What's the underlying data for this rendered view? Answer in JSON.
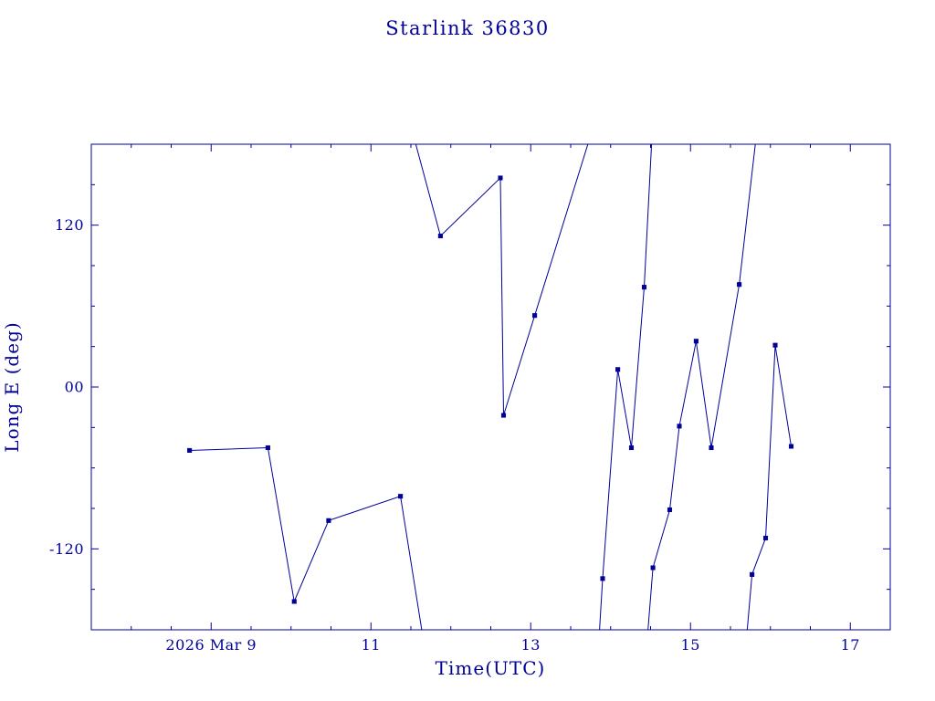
{
  "page": {
    "background": "#ffffff"
  },
  "colors": {
    "accent": "#000099",
    "background": "#ffffff"
  },
  "chart_data": {
    "type": "line",
    "title": "Starlink 36830",
    "xlabel": "Time(UTC)",
    "ylabel": "Long E (deg)",
    "xlim": [
      7.5,
      17.5
    ],
    "ylim": [
      -180,
      180
    ],
    "grid": false,
    "legend": "none",
    "line_color": "#000099",
    "marker": "filled-square",
    "x_major_ticks": [
      {
        "value": 9,
        "label": "2026 Mar 9"
      },
      {
        "value": 11,
        "label": "11"
      },
      {
        "value": 13,
        "label": "13"
      },
      {
        "value": 15,
        "label": "15"
      },
      {
        "value": 17,
        "label": "17"
      }
    ],
    "x_minor_step": 0.5,
    "y_major_ticks": [
      {
        "value": 120,
        "label": "120"
      },
      {
        "value": 0,
        "label": "00"
      },
      {
        "value": -120,
        "label": "-120"
      }
    ],
    "y_minor_step": 30,
    "series": [
      {
        "name": "segment-1",
        "points": [
          [
            8.73,
            -47
          ],
          [
            9.71,
            -45
          ],
          [
            10.04,
            -159
          ],
          [
            10.47,
            -99
          ],
          [
            11.37,
            -81
          ],
          [
            11.69,
            -200
          ]
        ]
      },
      {
        "name": "segment-2",
        "points": [
          [
            11.47,
            200
          ],
          [
            11.87,
            112
          ],
          [
            12.62,
            155
          ],
          [
            12.66,
            -21
          ],
          [
            13.05,
            53
          ],
          [
            13.82,
            200
          ]
        ]
      },
      {
        "name": "segment-3",
        "points": [
          [
            13.84,
            -200
          ],
          [
            13.9,
            -142
          ],
          [
            14.09,
            13
          ],
          [
            14.26,
            -45
          ],
          [
            14.42,
            74
          ],
          [
            14.53,
            200
          ]
        ]
      },
      {
        "name": "segment-4",
        "points": [
          [
            14.44,
            -200
          ],
          [
            14.53,
            -134
          ],
          [
            14.74,
            -91
          ],
          [
            14.86,
            -29
          ],
          [
            15.07,
            34
          ],
          [
            15.26,
            -45
          ],
          [
            15.61,
            76
          ],
          [
            15.85,
            200
          ]
        ]
      },
      {
        "name": "segment-5",
        "points": [
          [
            15.68,
            -200
          ],
          [
            15.77,
            -139
          ],
          [
            15.94,
            -112
          ],
          [
            16.06,
            31
          ],
          [
            16.26,
            -44
          ]
        ]
      }
    ]
  }
}
